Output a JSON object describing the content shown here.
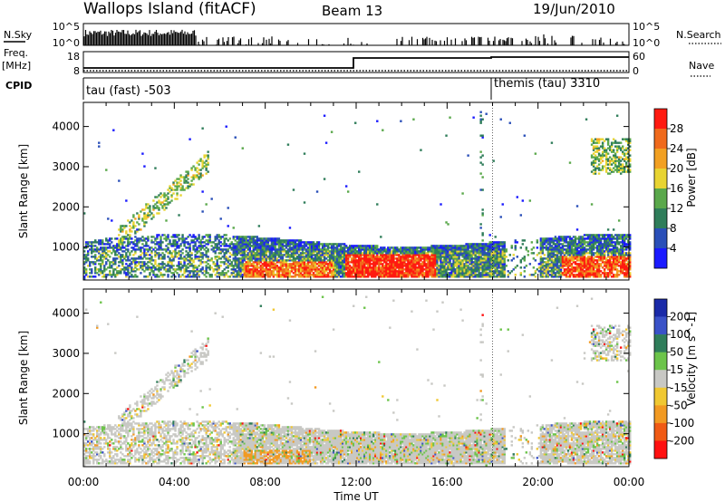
{
  "header": {
    "station": "Wallops Island (fitACF)",
    "beam": "Beam 13",
    "date": "19/Jun/2010"
  },
  "left_labels": {
    "nsky": "N.Sky",
    "freq": "Freq.",
    "freq_unit": "[MHz]",
    "cpid": "CPID"
  },
  "right_labels": {
    "nsearch": "N.Search",
    "nave": "Nave"
  },
  "strip_ticks": {
    "nsky_left": [
      "10^5",
      "10^0"
    ],
    "nsky_right": [
      "10^5",
      "10^0"
    ],
    "freq_left": [
      "18",
      "8"
    ],
    "nave_right": [
      "60",
      "0"
    ]
  },
  "cpid": {
    "segments": [
      {
        "label": "tau (fast) -503",
        "start_hour": 0
      },
      {
        "label": "themis (tau) 3310",
        "start_hour": 18
      }
    ]
  },
  "chart_data": [
    {
      "type": "heatmap",
      "name": "power",
      "ylabel": "Slant Range [km]",
      "yticks": [
        1000,
        2000,
        3000,
        4000
      ],
      "ylim": [
        180,
        4600
      ],
      "xlim_hours": [
        0,
        24
      ],
      "colorbar": {
        "label": "Power [dB]",
        "ticks": [
          "4",
          "8",
          "12",
          "16",
          "20",
          "24",
          "28"
        ],
        "colors": [
          "#1a1aff",
          "#2a4fb8",
          "#2f7d5a",
          "#5aa84b",
          "#e8d432",
          "#f2a022",
          "#f06a1c",
          "#ff1a10"
        ]
      }
    },
    {
      "type": "heatmap",
      "name": "velocity",
      "ylabel": "Slant Range [km]",
      "yticks": [
        1000,
        2000,
        3000,
        4000
      ],
      "ylim": [
        180,
        4600
      ],
      "xlim_hours": [
        0,
        24
      ],
      "colorbar": {
        "label": "Velocity [m s^-1]",
        "ticks": [
          "200",
          "100",
          "50",
          "15",
          "-15",
          "-50",
          "-100",
          "-200"
        ],
        "colors": [
          "#1a2aa8",
          "#3a52c8",
          "#2f7d5a",
          "#6cc44a",
          "#c8c8c4",
          "#f0c832",
          "#f29a22",
          "#f05a14",
          "#ff1010"
        ]
      }
    }
  ],
  "xaxis": {
    "label": "Time UT",
    "ticks": [
      "00:00",
      "04:00",
      "08:00",
      "12:00",
      "16:00",
      "20:00",
      "00:00"
    ]
  }
}
